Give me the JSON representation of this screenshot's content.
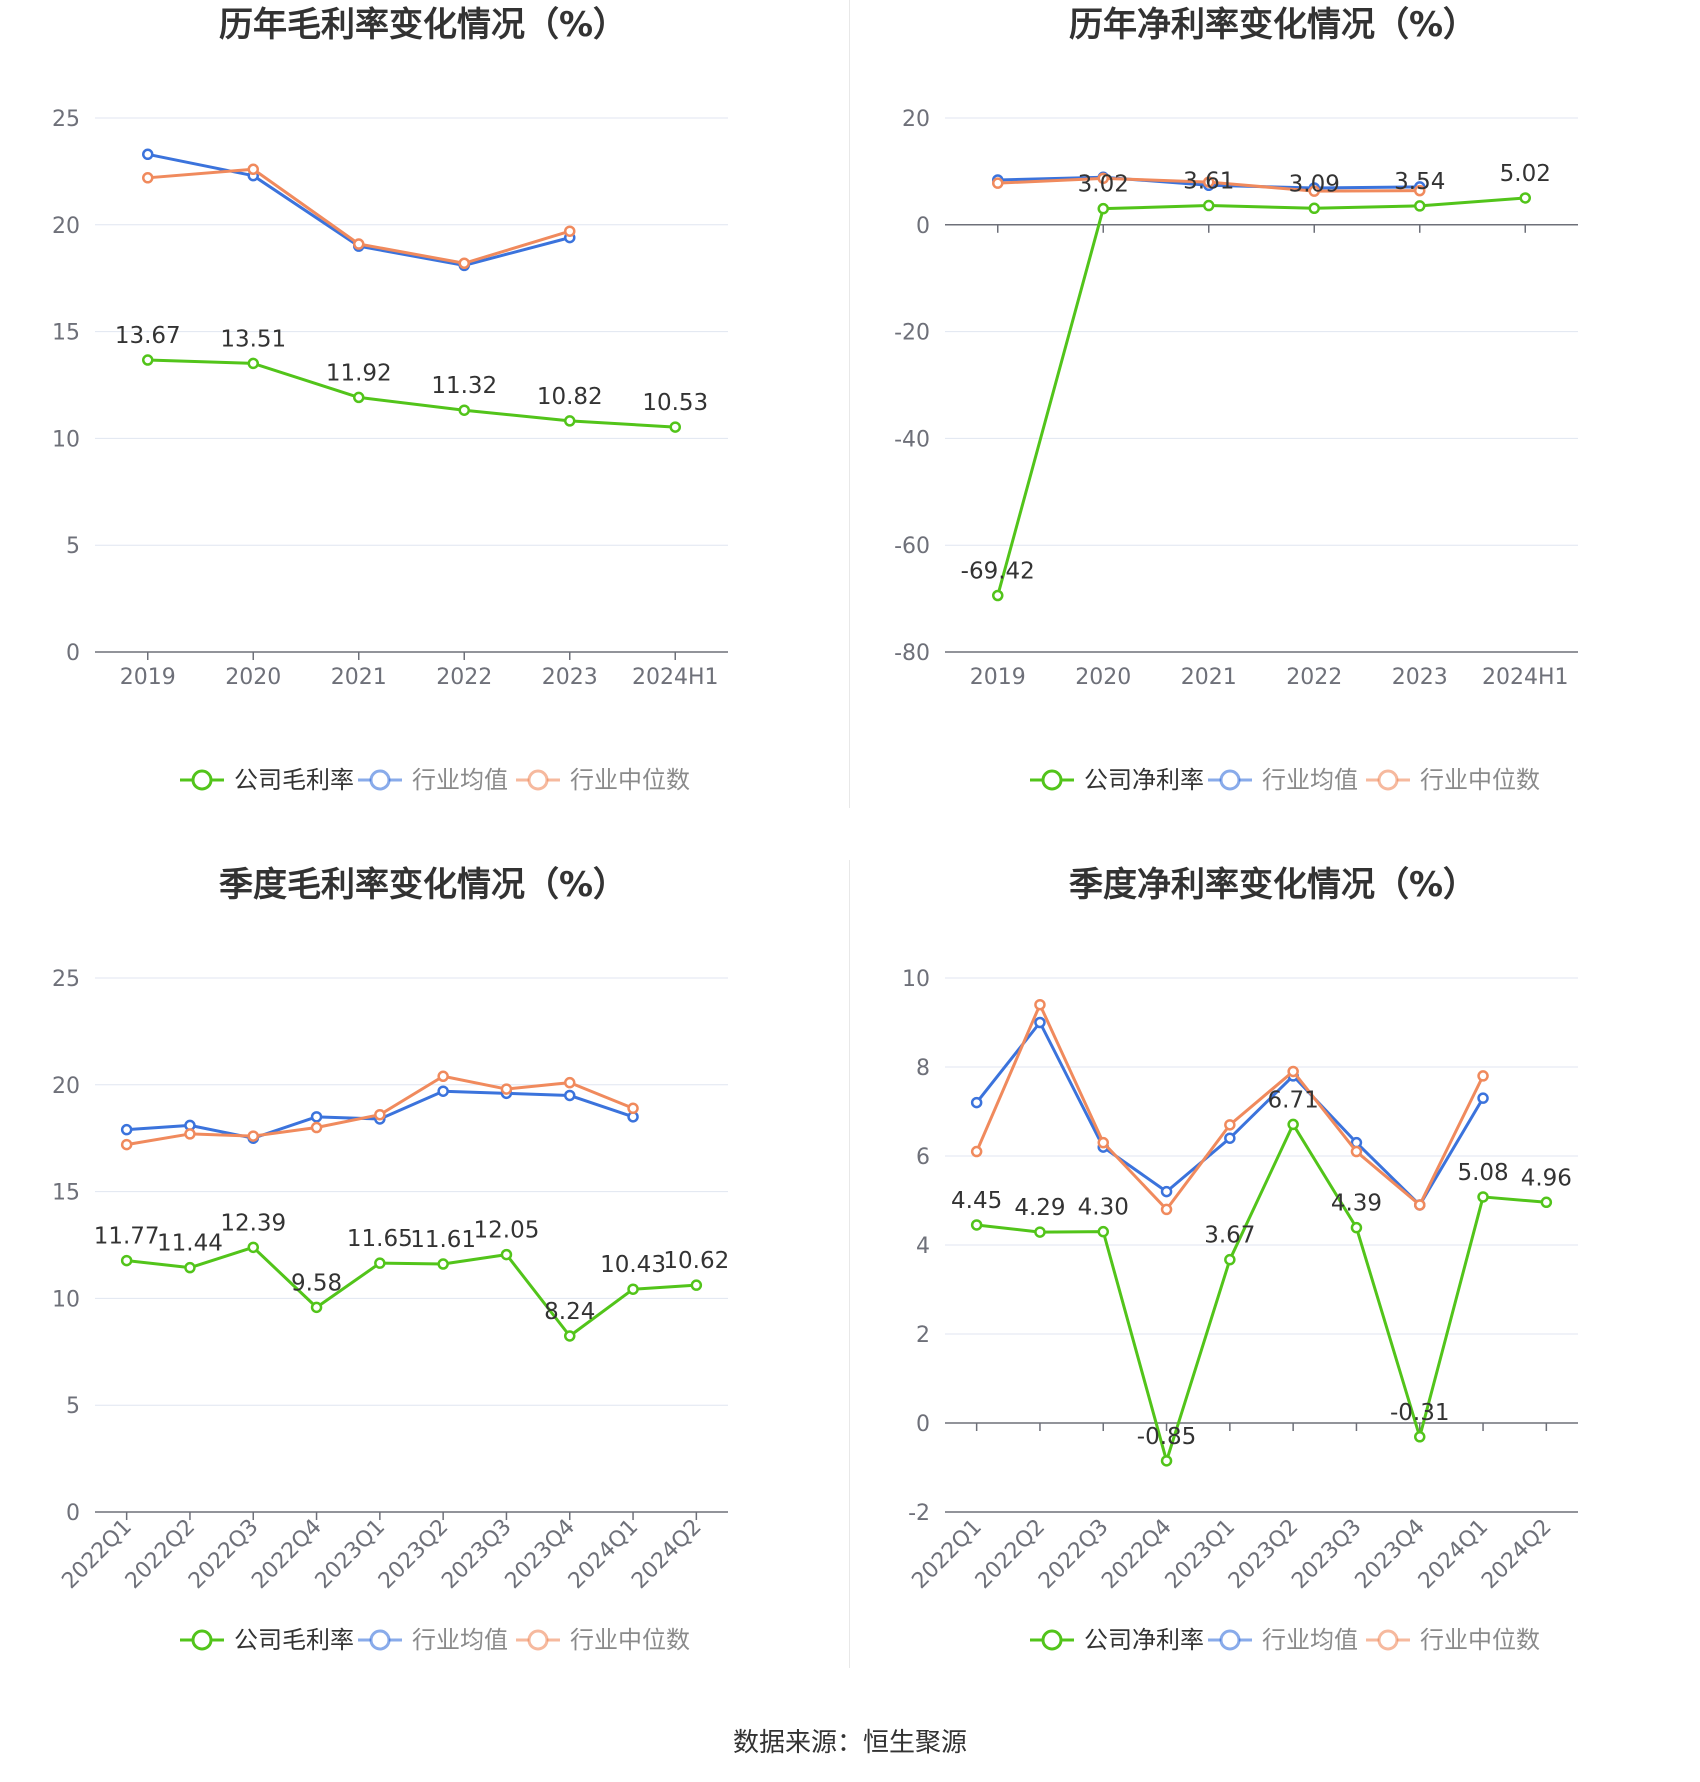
{
  "colors": {
    "company": "#52c41a",
    "avg": "#3b73dc",
    "median": "#f08a5d"
  },
  "source": "数据来源：恒生聚源",
  "chart_data": [
    {
      "type": "line",
      "title": "历年毛利率变化情况（%）",
      "categories": [
        "2019",
        "2020",
        "2021",
        "2022",
        "2023",
        "2024H1"
      ],
      "ylim": [
        0,
        25
      ],
      "yticks": [
        0,
        5,
        10,
        15,
        20,
        25
      ],
      "x_label_rotate": false,
      "legend": [
        "公司毛利率",
        "行业均值",
        "行业中位数"
      ],
      "legend_position": "bottom",
      "grid": true,
      "series": [
        {
          "name": "公司毛利率",
          "color": "company",
          "labels": true,
          "values": [
            13.67,
            13.51,
            11.92,
            11.32,
            10.82,
            10.53
          ]
        },
        {
          "name": "行业均值",
          "color": "avg",
          "labels": false,
          "values": [
            23.3,
            22.3,
            19.0,
            18.1,
            19.4,
            null
          ]
        },
        {
          "name": "行业中位数",
          "color": "median",
          "labels": false,
          "values": [
            22.2,
            22.6,
            19.1,
            18.2,
            19.7,
            null
          ]
        }
      ]
    },
    {
      "type": "line",
      "title": "历年净利率变化情况（%）",
      "categories": [
        "2019",
        "2020",
        "2021",
        "2022",
        "2023",
        "2024H1"
      ],
      "ylim": [
        -80,
        20
      ],
      "yticks": [
        -80,
        -60,
        -40,
        -20,
        0,
        20
      ],
      "x_label_rotate": false,
      "legend": [
        "公司净利率",
        "行业均值",
        "行业中位数"
      ],
      "legend_position": "bottom",
      "grid": true,
      "series": [
        {
          "name": "公司净利率",
          "color": "company",
          "labels": true,
          "values": [
            -69.42,
            3.02,
            3.61,
            3.09,
            3.54,
            5.02
          ]
        },
        {
          "name": "行业均值",
          "color": "avg",
          "labels": false,
          "values": [
            8.4,
            8.9,
            7.4,
            6.9,
            7.1,
            null
          ]
        },
        {
          "name": "行业中位数",
          "color": "median",
          "labels": false,
          "values": [
            7.8,
            8.7,
            8.0,
            6.3,
            6.4,
            null
          ]
        }
      ]
    },
    {
      "type": "line",
      "title": "季度毛利率变化情况（%）",
      "categories": [
        "2022Q1",
        "2022Q2",
        "2022Q3",
        "2022Q4",
        "2023Q1",
        "2023Q2",
        "2023Q3",
        "2023Q4",
        "2024Q1",
        "2024Q2"
      ],
      "ylim": [
        0,
        25
      ],
      "yticks": [
        0,
        5,
        10,
        15,
        20,
        25
      ],
      "x_label_rotate": true,
      "legend": [
        "公司毛利率",
        "行业均值",
        "行业中位数"
      ],
      "legend_position": "bottom",
      "grid": true,
      "series": [
        {
          "name": "公司毛利率",
          "color": "company",
          "labels": true,
          "values": [
            11.77,
            11.44,
            12.39,
            9.58,
            11.65,
            11.61,
            12.05,
            8.24,
            10.43,
            10.62
          ]
        },
        {
          "name": "行业均值",
          "color": "avg",
          "labels": false,
          "values": [
            17.9,
            18.1,
            17.5,
            18.5,
            18.4,
            19.7,
            19.6,
            19.5,
            18.5,
            null
          ]
        },
        {
          "name": "行业中位数",
          "color": "median",
          "labels": false,
          "values": [
            17.2,
            17.7,
            17.6,
            18.0,
            18.6,
            20.4,
            19.8,
            20.1,
            18.9,
            null
          ]
        }
      ]
    },
    {
      "type": "line",
      "title": "季度净利率变化情况（%）",
      "categories": [
        "2022Q1",
        "2022Q2",
        "2022Q3",
        "2022Q4",
        "2023Q1",
        "2023Q2",
        "2023Q3",
        "2023Q4",
        "2024Q1",
        "2024Q2"
      ],
      "ylim": [
        -2,
        10
      ],
      "yticks": [
        -2,
        0,
        2,
        4,
        6,
        8,
        10
      ],
      "x_label_rotate": true,
      "legend": [
        "公司净利率",
        "行业均值",
        "行业中位数"
      ],
      "legend_position": "bottom",
      "grid": true,
      "series": [
        {
          "name": "公司净利率",
          "color": "company",
          "labels": true,
          "values": [
            4.45,
            4.29,
            4.3,
            -0.85,
            3.67,
            6.71,
            4.39,
            -0.31,
            5.08,
            4.96
          ]
        },
        {
          "name": "行业均值",
          "color": "avg",
          "labels": false,
          "values": [
            7.2,
            9.0,
            6.2,
            5.2,
            6.4,
            7.8,
            6.3,
            4.9,
            7.3,
            null
          ]
        },
        {
          "name": "行业中位数",
          "color": "median",
          "labels": false,
          "values": [
            6.1,
            9.4,
            6.3,
            4.8,
            6.7,
            7.9,
            6.1,
            4.9,
            7.8,
            null
          ]
        }
      ]
    }
  ]
}
